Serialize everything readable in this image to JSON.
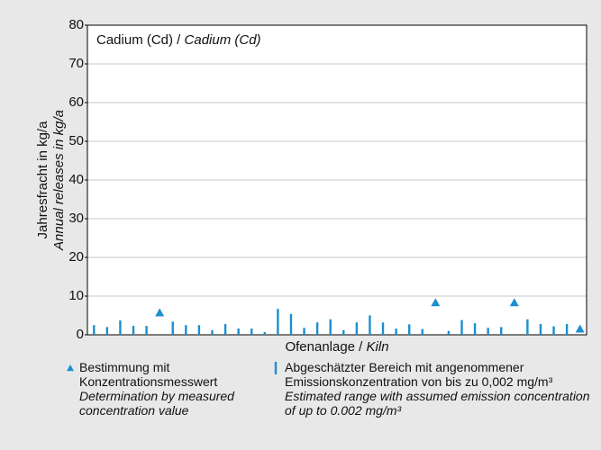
{
  "chart_data": {
    "type": "range-and-marker",
    "title": "Cadium (Cd) /",
    "title_en": "Cadium (Cd)",
    "x_label": "Ofenanlage /",
    "x_label_en": "Kiln",
    "y_label": "Jahresfracht in kg/a",
    "y_label_en": "Annual releases in kg/a",
    "categories": [
      null,
      null,
      null,
      null,
      null,
      null,
      null,
      null,
      null,
      null,
      null,
      null,
      null,
      null,
      null,
      null,
      null,
      null,
      null,
      null,
      null,
      null,
      null,
      null,
      null,
      null,
      null,
      null,
      null,
      null,
      null,
      null,
      null,
      null,
      null,
      null,
      null,
      null
    ],
    "ylim": [
      0,
      80
    ],
    "yticks": [
      0,
      10,
      20,
      30,
      40,
      50,
      60,
      70,
      80
    ],
    "grid": true,
    "series": [
      {
        "name": "Bestimmung mit Konzentrationsmesswert",
        "name_en": "Determination by measured concentration value",
        "color": "#1b8fd0",
        "marker": "triangle",
        "values": [
          null,
          null,
          null,
          null,
          null,
          5.7,
          null,
          null,
          null,
          null,
          null,
          null,
          null,
          null,
          null,
          null,
          null,
          null,
          null,
          null,
          null,
          null,
          null,
          null,
          null,
          null,
          8.3,
          null,
          null,
          null,
          null,
          null,
          8.3,
          null,
          null,
          null,
          null,
          1.5
        ]
      },
      {
        "name": "Abgeschätzter Bereich mit angenommener Emissionskonzentration von bis zu 0,002 mg/m³",
        "name_en": "Estimated range with assumed emission concentration of up to 0.002 mg/m³",
        "color": "#1b8fd0",
        "marker": "range",
        "values": [
          2.5,
          2,
          3.7,
          2.3,
          2.3,
          null,
          3.4,
          2.5,
          2.5,
          1.2,
          2.8,
          1.6,
          1.6,
          0.7,
          6.7,
          5.4,
          1.8,
          3.2,
          4,
          1.2,
          3.2,
          5,
          3.2,
          1.6,
          2.7,
          1.5,
          null,
          1,
          3.8,
          3,
          1.8,
          2,
          null,
          4,
          2.8,
          2.2,
          2.8,
          null
        ]
      }
    ]
  }
}
